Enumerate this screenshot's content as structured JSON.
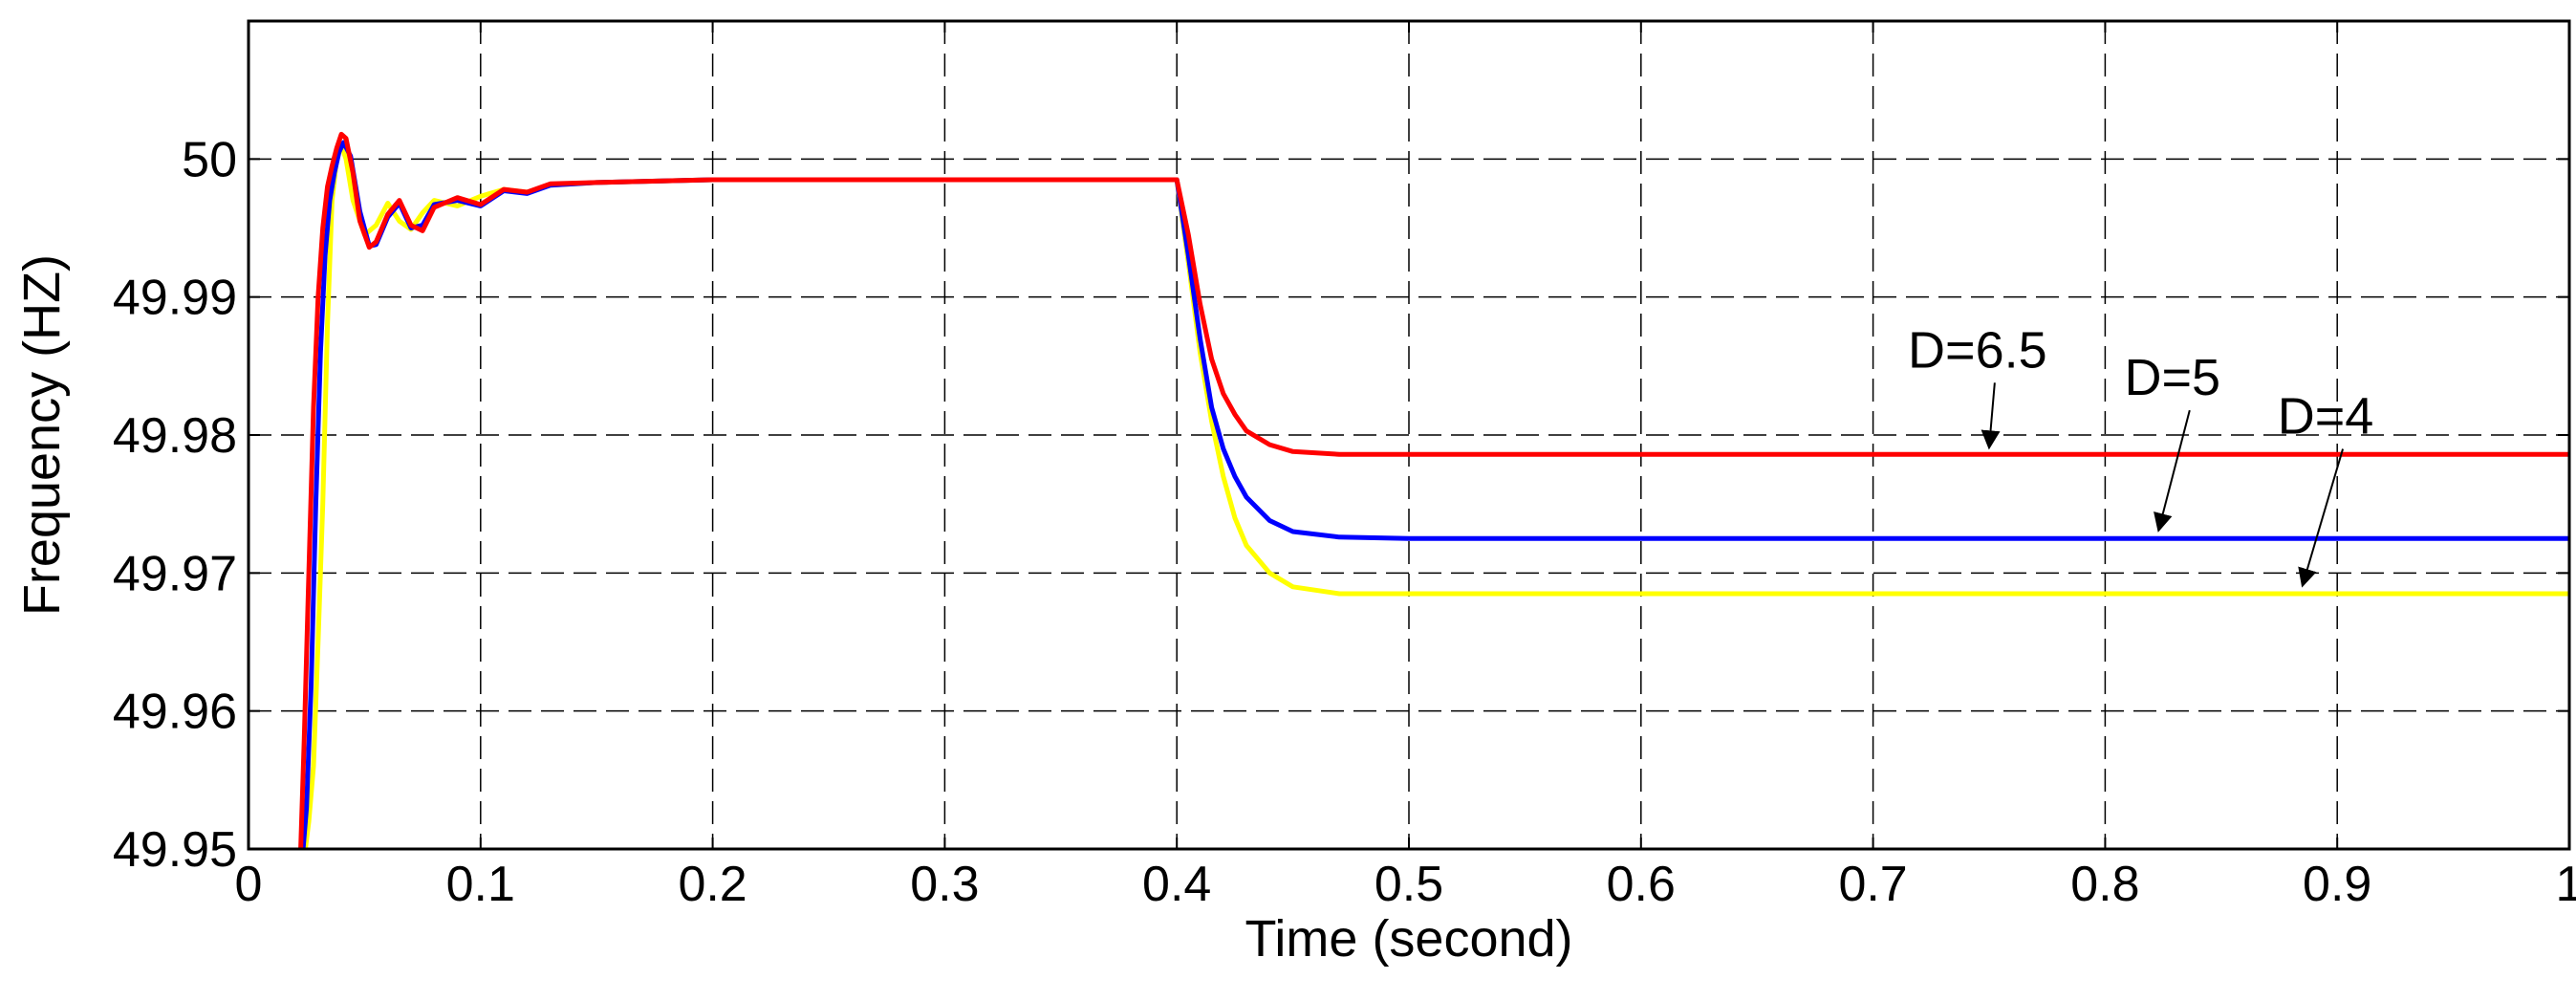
{
  "chart_data": {
    "type": "line",
    "title": "",
    "xlabel": "Time (second)",
    "ylabel": "Frequency (HZ)",
    "xlim": [
      0,
      1
    ],
    "ylim": [
      49.95,
      50.01
    ],
    "xticks": [
      0,
      0.1,
      0.2,
      0.3,
      0.4,
      0.5,
      0.6,
      0.7,
      0.8,
      0.9,
      1
    ],
    "xtick_labels": [
      "0",
      "0.1",
      "0.2",
      "0.3",
      "0.4",
      "0.5",
      "0.6",
      "0.7",
      "0.8",
      "0.9",
      "1"
    ],
    "yticks": [
      49.95,
      49.96,
      49.97,
      49.98,
      49.99,
      50
    ],
    "ytick_labels": [
      "49.95",
      "49.96",
      "49.97",
      "49.98",
      "49.99",
      "50"
    ],
    "grid": true,
    "series": [
      {
        "name": "D=4",
        "color": "#ffff00",
        "x": [
          0.0245,
          0.026,
          0.028,
          0.03,
          0.032,
          0.034,
          0.036,
          0.038,
          0.04,
          0.042,
          0.045,
          0.05,
          0.055,
          0.06,
          0.065,
          0.07,
          0.075,
          0.08,
          0.09,
          0.1,
          0.11,
          0.12,
          0.13,
          0.15,
          0.2,
          0.3,
          0.4,
          0.405,
          0.41,
          0.415,
          0.42,
          0.425,
          0.43,
          0.44,
          0.45,
          0.47,
          0.5,
          0.6,
          0.7,
          0.8,
          0.9,
          1.0
        ],
        "y": [
          49.95,
          49.952,
          49.956,
          49.965,
          49.975,
          49.988,
          49.997,
          50.0,
          50.001,
          50.0,
          49.997,
          49.9945,
          49.9952,
          49.9968,
          49.9955,
          49.9949,
          49.9961,
          49.997,
          49.9966,
          49.9973,
          49.9978,
          49.9976,
          49.9981,
          49.9983,
          49.9985,
          49.9985,
          49.9985,
          49.9925,
          49.986,
          49.981,
          49.977,
          49.974,
          49.972,
          49.97,
          49.969,
          49.9685,
          49.9685,
          49.9685,
          49.9685,
          49.9685,
          49.9685,
          49.9685
        ]
      },
      {
        "name": "D=5",
        "color": "#0000ff",
        "x": [
          0.0235,
          0.025,
          0.027,
          0.029,
          0.031,
          0.033,
          0.035,
          0.037,
          0.039,
          0.041,
          0.044,
          0.048,
          0.052,
          0.055,
          0.06,
          0.065,
          0.07,
          0.075,
          0.08,
          0.09,
          0.1,
          0.11,
          0.12,
          0.13,
          0.15,
          0.2,
          0.3,
          0.4,
          0.405,
          0.41,
          0.415,
          0.42,
          0.425,
          0.43,
          0.44,
          0.45,
          0.47,
          0.5,
          0.6,
          0.7,
          0.8,
          0.9,
          1.0
        ],
        "y": [
          49.95,
          49.953,
          49.962,
          49.975,
          49.986,
          49.993,
          49.997,
          49.999,
          50.0005,
          50.0012,
          50.0002,
          49.9962,
          49.9937,
          49.9938,
          49.9958,
          49.9968,
          49.995,
          49.9952,
          49.9967,
          49.997,
          49.9966,
          49.9977,
          49.9975,
          49.9981,
          49.9983,
          49.9985,
          49.9985,
          49.9985,
          49.993,
          49.987,
          49.982,
          49.979,
          49.977,
          49.9755,
          49.9738,
          49.973,
          49.9726,
          49.9725,
          49.9725,
          49.9725,
          49.9725,
          49.9725,
          49.9725
        ]
      },
      {
        "name": "D=6.5",
        "color": "#ff0000",
        "x": [
          0.0225,
          0.024,
          0.026,
          0.028,
          0.03,
          0.032,
          0.034,
          0.036,
          0.038,
          0.04,
          0.042,
          0.045,
          0.048,
          0.052,
          0.055,
          0.06,
          0.065,
          0.07,
          0.075,
          0.08,
          0.09,
          0.1,
          0.11,
          0.12,
          0.13,
          0.15,
          0.2,
          0.3,
          0.4,
          0.405,
          0.41,
          0.415,
          0.42,
          0.425,
          0.43,
          0.44,
          0.45,
          0.47,
          0.5,
          0.6,
          0.7,
          0.8,
          0.9,
          1.0
        ],
        "y": [
          49.95,
          49.958,
          49.97,
          49.982,
          49.99,
          49.995,
          49.998,
          49.9995,
          50.0008,
          50.0018,
          50.0015,
          49.999,
          49.9955,
          49.9936,
          49.994,
          49.996,
          49.997,
          49.9952,
          49.9948,
          49.9965,
          49.9972,
          49.9967,
          49.9978,
          49.9976,
          49.9982,
          49.9983,
          49.9985,
          49.9985,
          49.9985,
          49.9945,
          49.9895,
          49.9855,
          49.983,
          49.9815,
          49.9803,
          49.9793,
          49.9788,
          49.9786,
          49.9786,
          49.9786,
          49.9786,
          49.9786,
          49.9786,
          49.9786
        ]
      }
    ],
    "annotations": [
      {
        "text": "D=6.5",
        "x": 0.745,
        "y": 49.9849,
        "arrow_to": [
          0.75,
          49.9788
        ]
      },
      {
        "text": "D=5",
        "x": 0.829,
        "y": 49.9829,
        "arrow_to": [
          0.823,
          49.9728
        ]
      },
      {
        "text": "D=4",
        "x": 0.895,
        "y": 49.9801,
        "arrow_to": [
          0.885,
          49.9688
        ]
      }
    ]
  }
}
